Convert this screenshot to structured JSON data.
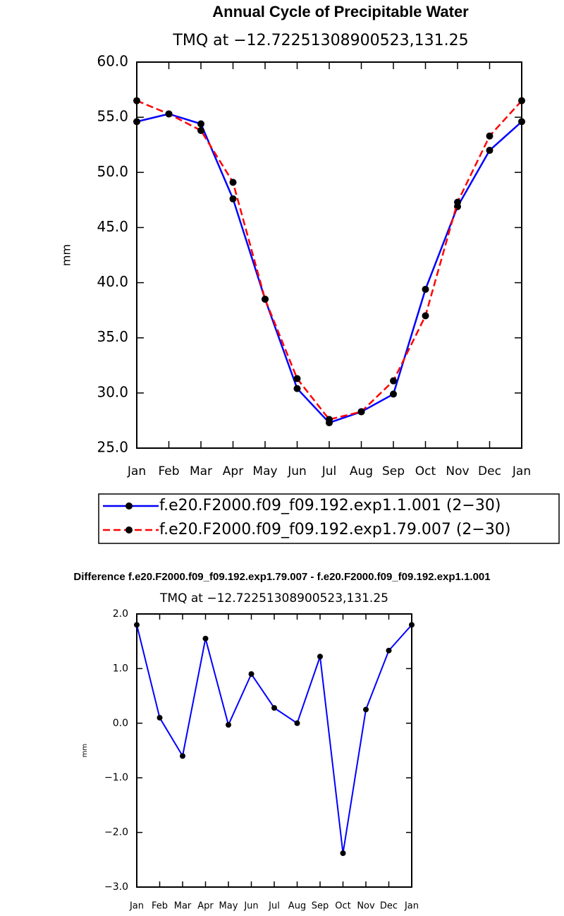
{
  "chart_data": [
    {
      "type": "line",
      "title": "Annual Cycle of Precipitable Water",
      "subtitle": "TMQ at −12.72251308900523,131.25",
      "ylabel": "mm",
      "categories": [
        "Jan",
        "Feb",
        "Mar",
        "Apr",
        "May",
        "Jun",
        "Jul",
        "Aug",
        "Sep",
        "Oct",
        "Nov",
        "Dec",
        "Jan"
      ],
      "series": [
        {
          "name": "f.e20.F2000.f09_f09.192.exp1.1.001 (2−30)",
          "color": "#0000ff",
          "dash": false,
          "values": [
            54.6,
            55.3,
            54.4,
            47.6,
            38.5,
            30.4,
            27.3,
            28.3,
            29.9,
            39.4,
            46.9,
            52.0,
            54.6
          ]
        },
        {
          "name": "f.e20.F2000.f09_f09.192.exp1.79.007 (2−30)",
          "color": "#ff0000",
          "dash": true,
          "values": [
            56.5,
            55.3,
            53.8,
            49.1,
            38.5,
            31.3,
            27.6,
            28.3,
            31.1,
            37.0,
            47.3,
            53.3,
            56.5
          ]
        }
      ],
      "ylim": [
        25,
        60
      ],
      "yticks": [
        {
          "value": 25,
          "label": "25.0"
        },
        {
          "value": 30,
          "label": "30.0"
        },
        {
          "value": 35,
          "label": "35.0"
        },
        {
          "value": 40,
          "label": "40.0"
        },
        {
          "value": 45,
          "label": "45.0"
        },
        {
          "value": 50,
          "label": "50.0"
        },
        {
          "value": 55,
          "label": "55.0"
        },
        {
          "value": 60,
          "label": "60.0"
        }
      ]
    },
    {
      "type": "line",
      "title": "Difference f.e20.F2000.f09_f09.192.exp1.79.007 - f.e20.F2000.f09_f09.192.exp1.1.001",
      "subtitle": "TMQ at −12.72251308900523,131.25",
      "ylabel": "mm",
      "categories": [
        "Jan",
        "Feb",
        "Mar",
        "Apr",
        "May",
        "Jun",
        "Jul",
        "Aug",
        "Sep",
        "Oct",
        "Nov",
        "Dec",
        "Jan"
      ],
      "color": "#0000ff",
      "values": [
        1.8,
        0.1,
        -0.6,
        1.55,
        -0.03,
        0.9,
        0.28,
        0.0,
        1.22,
        -2.38,
        0.25,
        1.33,
        1.8
      ],
      "ylim": [
        -3,
        2
      ],
      "yticks": [
        {
          "value": -3,
          "label": "−3.0"
        },
        {
          "value": -2,
          "label": "−2.0"
        },
        {
          "value": -1,
          "label": "−1.0"
        },
        {
          "value": 0,
          "label": "0.0"
        },
        {
          "value": 1,
          "label": "1.0"
        },
        {
          "value": 2,
          "label": "2.0"
        }
      ]
    }
  ]
}
